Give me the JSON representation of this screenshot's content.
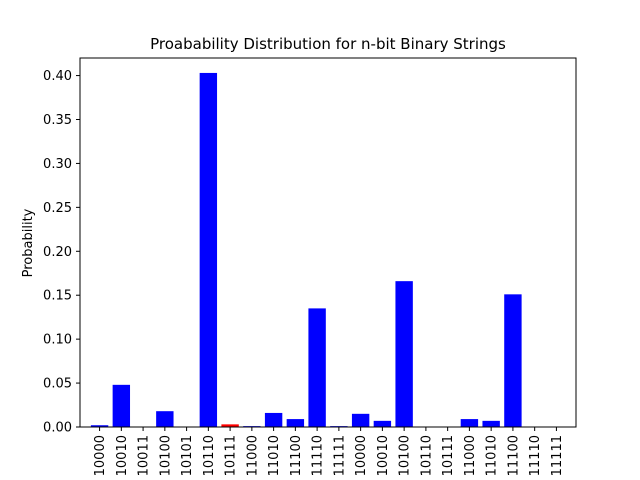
{
  "chart_data": {
    "type": "bar",
    "title": "Proabability Distribution for n-bit Binary Strings",
    "xlabel": "",
    "ylabel": "Probability",
    "ylim": [
      0,
      0.42
    ],
    "yticks": [
      "0.00",
      "0.05",
      "0.10",
      "0.15",
      "0.20",
      "0.25",
      "0.30",
      "0.35",
      "0.40"
    ],
    "grid": false,
    "categories": [
      "10000",
      "10010",
      "10011",
      "10100",
      "10101",
      "10110",
      "10111",
      "11000",
      "11010",
      "11100",
      "11110",
      "11111",
      "10000",
      "10010",
      "10100",
      "10110",
      "10111",
      "11000",
      "11010",
      "11100",
      "11110",
      "11111"
    ],
    "values": [
      0.002,
      0.048,
      0.0,
      0.018,
      0.0,
      0.403,
      0.003,
      0.001,
      0.016,
      0.009,
      0.135,
      0.001,
      0.015,
      0.007,
      0.166,
      0.0,
      0.0,
      0.009,
      0.007,
      0.151,
      0.0,
      0.0
    ],
    "bar_colors": [
      "#0000ff",
      "#0000ff",
      "#0000ff",
      "#0000ff",
      "#0000ff",
      "#0000ff",
      "#ff0000",
      "#0000ff",
      "#0000ff",
      "#0000ff",
      "#0000ff",
      "#0000ff",
      "#0000ff",
      "#0000ff",
      "#0000ff",
      "#0000ff",
      "#0000ff",
      "#0000ff",
      "#0000ff",
      "#0000ff",
      "#0000ff",
      "#0000ff"
    ]
  }
}
